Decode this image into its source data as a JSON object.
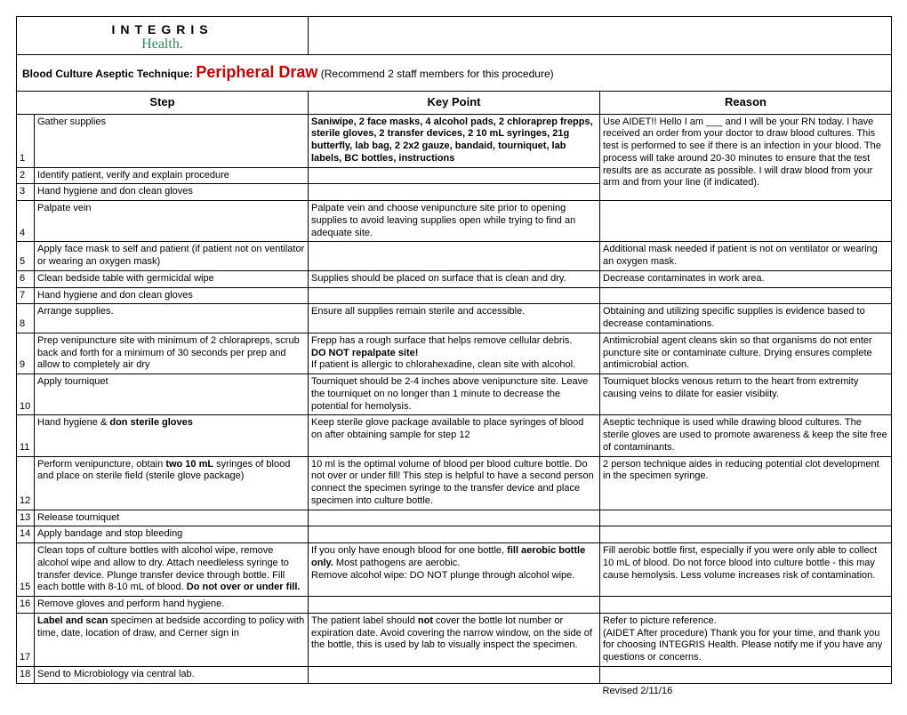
{
  "logo": {
    "line1": "INTEGRIS",
    "line2": "Health."
  },
  "title": {
    "prefix": "Blood Culture Aseptic Technique: ",
    "main": "Peripheral Draw",
    "suffix": " (Recommend 2 staff members for this procedure)"
  },
  "headers": {
    "step": "Step",
    "keypoint": "Key Point",
    "reason": "Reason"
  },
  "rows": {
    "r1": {
      "num": "1",
      "step": "Gather supplies",
      "kp": "Saniwipe, 2 face masks, 4 alcohol pads, 2 chloraprep frepps, sterile gloves, 2 transfer devices, 2 10 mL syringes, 21g butterfly, lab bag, 2 2x2 gauze, bandaid, tourniquet, lab labels, BC bottles, instructions"
    },
    "r2": {
      "num": "2",
      "step": "Identify patient, verify and explain procedure"
    },
    "r3": {
      "num": "3",
      "step": "Hand hygiene and don clean gloves"
    },
    "reason_1_3": "Use AIDET!! Hello I am ___ and I will be your RN today.  I have received an order from your doctor to draw blood cultures.  This test is performed to see if there is an infection in your blood.  The process will take around 20-30 minutes to ensure that the test results are as accurate as possible.  I will draw blood from your arm and from your line (if indicated).",
    "r4": {
      "num": "4",
      "step": "Palpate vein",
      "kp": "Palpate vein and choose venipuncture site prior to opening supplies to avoid leaving supplies open while trying to find an adequate site.",
      "reason": ""
    },
    "r5": {
      "num": "5",
      "step": "Apply face mask to self and patient (if patient not on ventilator or wearing an oxygen mask)",
      "kp": "",
      "reason": "Additional mask needed if patient is not on ventilator or wearing an oxygen mask."
    },
    "r6": {
      "num": "6",
      "step": "Clean bedside table with germicidal wipe",
      "kp": "Supplies should be placed on surface that is clean and dry.",
      "reason": "Decrease contaminates in work area."
    },
    "r7": {
      "num": "7",
      "step": "Hand hygiene and don clean gloves",
      "kp": "",
      "reason": ""
    },
    "r8": {
      "num": "8",
      "step": "Arrange supplies.",
      "kp": "Ensure all supplies remain sterile and accessible.",
      "reason": "Obtaining and utilizing specific supplies is evidence based to decrease contaminations."
    },
    "r9": {
      "num": "9",
      "step": "Prep venipuncture site with minimum of 2 chlorapreps, scrub back and forth for a minimum of 30 seconds per prep and allow to completely air dry",
      "kp_line1": "Frepp has a rough surface that helps remove cellular debris.",
      "kp_line2": "DO NOT repalpate site!",
      "kp_line3": "If patient is allergic to chlorahexadine, clean site with alcohol.",
      "reason": "Antimicrobial agent cleans skin so that organisms do not enter puncture site or contaminate culture. Drying ensures complete antimicrobial action."
    },
    "r10": {
      "num": "10",
      "step": "Apply tourniquet",
      "kp": "Tourniquet should be 2-4 inches above venipuncture site. Leave the tourniquet on no longer than 1 minute to decrease the potential for hemolysis.",
      "reason": "Tourniquet blocks venous return to the heart from extremity causing veins to dilate for easier visibiity."
    },
    "r11": {
      "num": "11",
      "step_a": "Hand hygiene & ",
      "step_b": "don sterile gloves",
      "kp": "Keep sterile glove package available to place syringes of blood on after obtaining sample for step 12",
      "reason": "Aseptic technique is used while drawing blood cultures. The sterile gloves are used to promote awareness & keep the site free of contaminants."
    },
    "r12": {
      "num": "12",
      "step_a": "Perform venipuncture, obtain ",
      "step_b": "two 10 mL",
      "step_c": " syringes of blood and place on sterile field (sterile glove package)",
      "kp": "10 ml is the optimal volume of blood per blood culture bottle. Do not over or under fill! This step is helpful to have a second person connect the specimen syringe to the transfer device and place specimen into culture bottle.",
      "reason": "2 person technique aides in reducing potential clot development in the specimen syringe."
    },
    "r13": {
      "num": "13",
      "step": "Release tourniquet",
      "kp": "",
      "reason": ""
    },
    "r14": {
      "num": "14",
      "step": "Apply bandage and stop bleeding",
      "kp": "",
      "reason": ""
    },
    "r15": {
      "num": "15",
      "step_a": "Clean tops of culture bottles with alcohol wipe, remove alcohol wipe and allow to dry. Attach needleless syringe to transfer device. Plunge transfer device through bottle. Fill each bottle with 8-10 mL of blood. ",
      "step_b": "Do not over or under fill.",
      "kp_a": "If you only have enough blood for one bottle, ",
      "kp_b": "fill aerobic bottle only.",
      "kp_c": " Most pathogens are aerobic.",
      "kp_d": "Remove alcohol wipe: DO NOT plunge through alcohol wipe.",
      "reason": "Fill aerobic bottle first, especially if you were only able to collect 10 mL of blood.  Do not force blood into culture bottle - this may cause hemolysis.  Less volume increases risk of contamination."
    },
    "r16": {
      "num": "16",
      "step": "Remove gloves and perform hand hygiene.",
      "kp": "",
      "reason": ""
    },
    "r17": {
      "num": "17",
      "step_a": "Label and scan",
      "step_b": " specimen at bedside according to policy with time, date, location of draw, and Cerner sign in",
      "kp_a": "The patient label should ",
      "kp_b": "not",
      "kp_c": " cover the bottle lot number or expiration date. Avoid covering the narrow window, on the side of the bottle, this is used by lab to visually inspect the specimen.",
      "reason_a": "Refer to picture reference.",
      "reason_b": "(AIDET After procedure) Thank you for your time, and thank you for choosing INTEGRIS Health. Please notify me if you have any questions or concerns."
    },
    "r18": {
      "num": "18",
      "step": "Send to Microbiology via central lab.",
      "kp": "",
      "reason": ""
    }
  },
  "revised": "Revised 2/11/16"
}
